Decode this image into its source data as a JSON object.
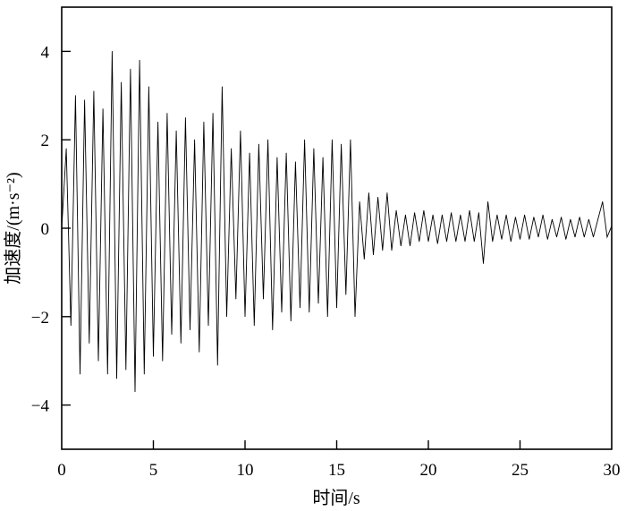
{
  "chart_data": {
    "type": "line",
    "title": "",
    "xlabel": "时间/s",
    "ylabel": "加速度/(m·s⁻²)",
    "xlim": [
      0,
      30
    ],
    "ylim": [
      -5,
      5
    ],
    "xticks": [
      0,
      5,
      10,
      15,
      20,
      25,
      30
    ],
    "yticks": [
      -4,
      -2,
      0,
      2,
      4
    ],
    "ytick_labels": [
      "−4",
      "−2",
      "0",
      "2",
      "4"
    ],
    "grid": false,
    "line_color": "#000000",
    "series": [
      {
        "x": [
          0,
          0.25,
          0.5,
          0.75,
          1,
          1.25,
          1.5,
          1.75,
          2,
          2.25,
          2.5,
          2.75,
          3,
          3.25,
          3.5,
          3.75,
          4,
          4.25,
          4.5,
          4.75,
          5,
          5.25,
          5.5,
          5.75,
          6,
          6.25,
          6.5,
          6.75,
          7,
          7.25,
          7.5,
          7.75,
          8,
          8.25,
          8.5,
          8.75,
          9,
          9.25,
          9.5,
          9.75,
          10,
          10.25,
          10.5,
          10.75,
          11,
          11.25,
          11.5,
          11.75,
          12,
          12.25,
          12.5,
          12.75,
          13,
          13.25,
          13.5,
          13.75,
          14,
          14.25,
          14.5,
          14.75,
          15,
          15.25,
          15.5,
          15.75,
          16,
          16.25,
          16.5,
          16.75,
          17,
          17.25,
          17.5,
          17.75,
          18,
          18.25,
          18.5,
          18.75,
          19,
          19.25,
          19.5,
          19.75,
          20,
          20.25,
          20.5,
          20.75,
          21,
          21.25,
          21.5,
          21.75,
          22,
          22.25,
          22.5,
          22.75,
          23,
          23.25,
          23.5,
          23.75,
          24,
          24.25,
          24.5,
          24.75,
          25,
          25.25,
          25.5,
          25.75,
          26,
          26.25,
          26.5,
          26.75,
          27,
          27.25,
          27.5,
          27.75,
          28,
          28.25,
          28.5,
          28.75,
          29,
          29.25,
          29.5,
          29.75,
          30
        ],
        "y": [
          0,
          1.8,
          -2.2,
          3.0,
          -3.3,
          2.9,
          -2.6,
          3.1,
          -3.0,
          2.7,
          -3.3,
          4.0,
          -3.4,
          3.3,
          -3.2,
          3.6,
          -3.7,
          3.8,
          -3.3,
          3.2,
          -2.9,
          2.4,
          -3.0,
          2.6,
          -2.4,
          2.2,
          -2.6,
          2.5,
          -2.3,
          2.0,
          -2.8,
          2.4,
          -2.2,
          2.6,
          -3.1,
          3.2,
          -2.0,
          1.8,
          -1.6,
          2.2,
          -2.0,
          1.7,
          -2.2,
          1.9,
          -1.6,
          2.0,
          -2.3,
          1.6,
          -1.9,
          1.7,
          -2.1,
          1.5,
          -1.8,
          2.0,
          -1.9,
          1.8,
          -1.7,
          1.6,
          -2.0,
          2.0,
          -1.8,
          1.9,
          -1.5,
          2.0,
          -2.0,
          0.6,
          -0.7,
          0.8,
          -0.6,
          0.7,
          -0.5,
          0.8,
          -0.5,
          0.4,
          -0.4,
          0.3,
          -0.4,
          0.35,
          -0.3,
          0.4,
          -0.3,
          0.3,
          -0.35,
          0.3,
          -0.3,
          0.35,
          -0.3,
          0.3,
          -0.3,
          0.4,
          -0.3,
          0.35,
          -0.8,
          0.6,
          -0.3,
          0.3,
          -0.25,
          0.3,
          -0.3,
          0.25,
          -0.25,
          0.3,
          -0.25,
          0.25,
          -0.2,
          0.3,
          -0.25,
          0.2,
          -0.2,
          0.25,
          -0.25,
          0.2,
          -0.2,
          0.25,
          -0.2,
          0.2,
          -0.2,
          0.2,
          0.6,
          -0.2,
          0.05
        ]
      }
    ]
  }
}
